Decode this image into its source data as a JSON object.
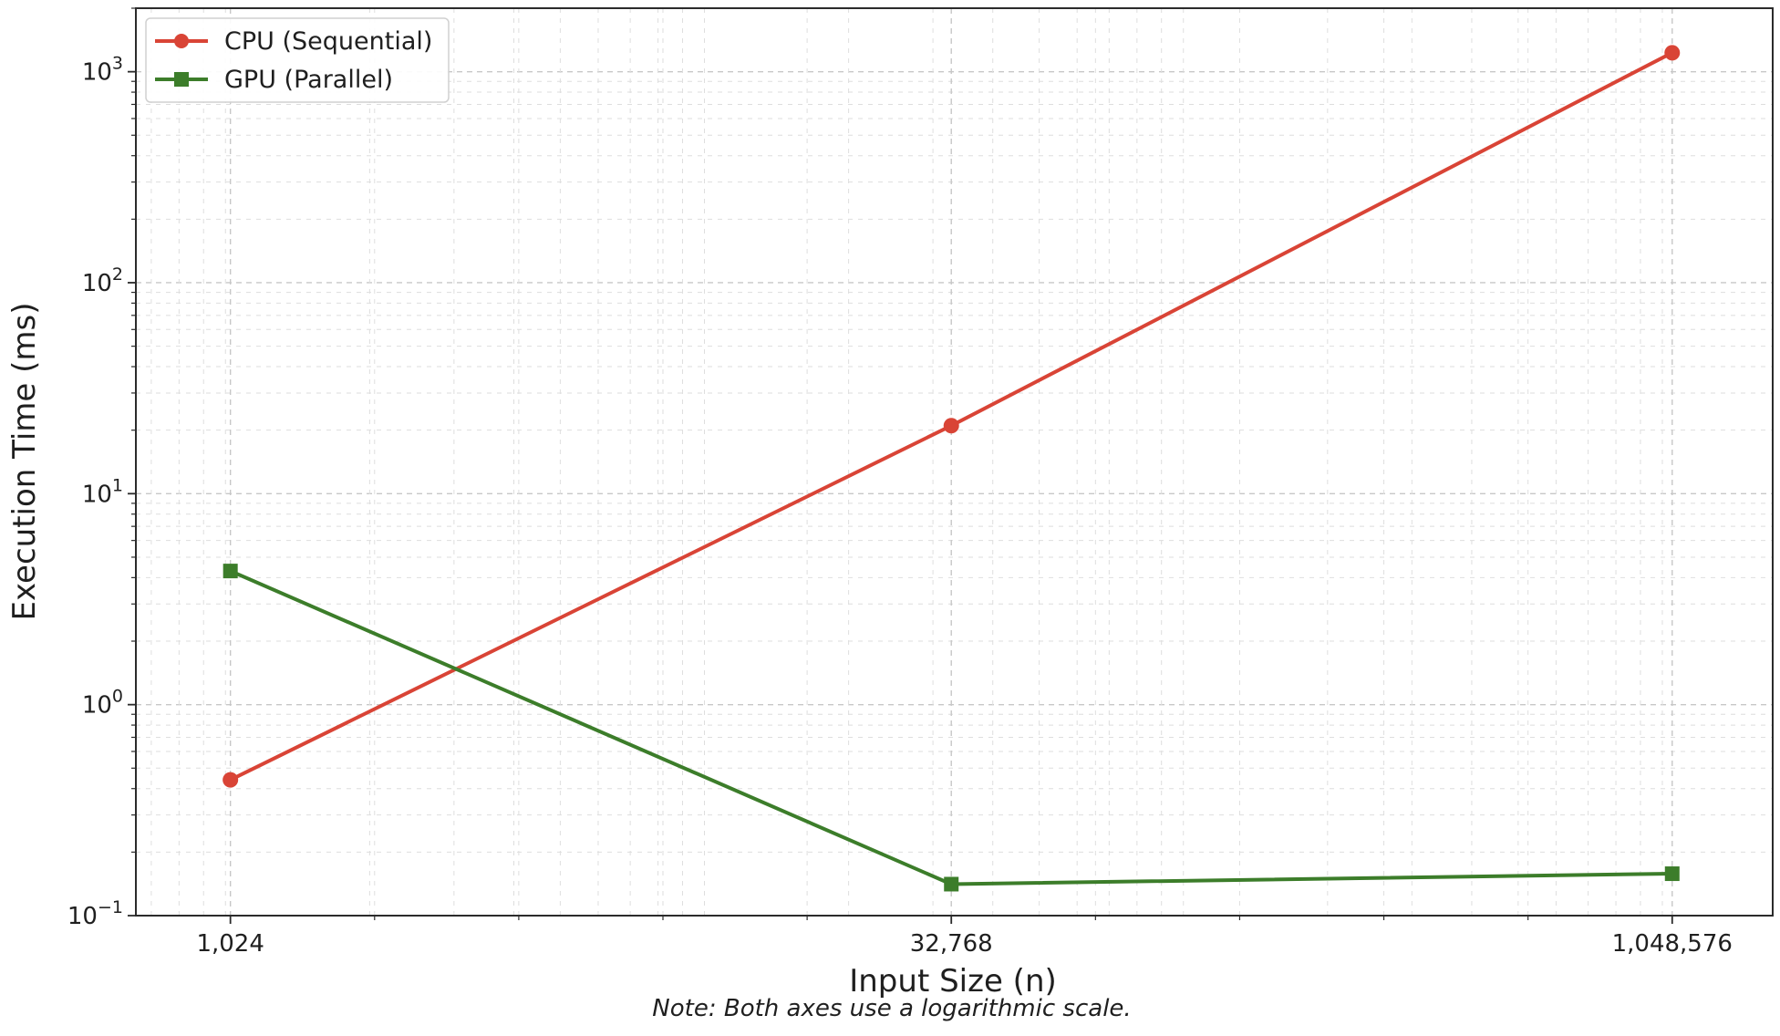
{
  "chart_data": {
    "type": "line",
    "xscale": "log",
    "yscale": "log",
    "x": [
      1024,
      32768,
      1048576
    ],
    "xticks": [
      "1,024",
      "32,768",
      "1,048,576"
    ],
    "xlim": [
      650,
      1700000
    ],
    "ylim": [
      0.1,
      2000
    ],
    "yticks": [
      {
        "base": "10",
        "exp": "−1",
        "value": 0.1
      },
      {
        "base": "10",
        "exp": "0",
        "value": 1
      },
      {
        "base": "10",
        "exp": "1",
        "value": 10
      },
      {
        "base": "10",
        "exp": "2",
        "value": 100
      },
      {
        "base": "10",
        "exp": "3",
        "value": 1000
      }
    ],
    "series": [
      {
        "name": "CPU (Sequential)",
        "values": [
          0.44,
          21,
          1230
        ],
        "color": "#d94436",
        "marker": "circle"
      },
      {
        "name": "GPU (Parallel)",
        "values": [
          4.3,
          0.141,
          0.158
        ],
        "color": "#3c7d2a",
        "marker": "square"
      }
    ],
    "xlabel": "Input Size (n)",
    "ylabel": "Execution Time (ms)",
    "note": "Note: Both axes use a logarithmic scale.",
    "grid": true,
    "legend_position": "top-left"
  }
}
